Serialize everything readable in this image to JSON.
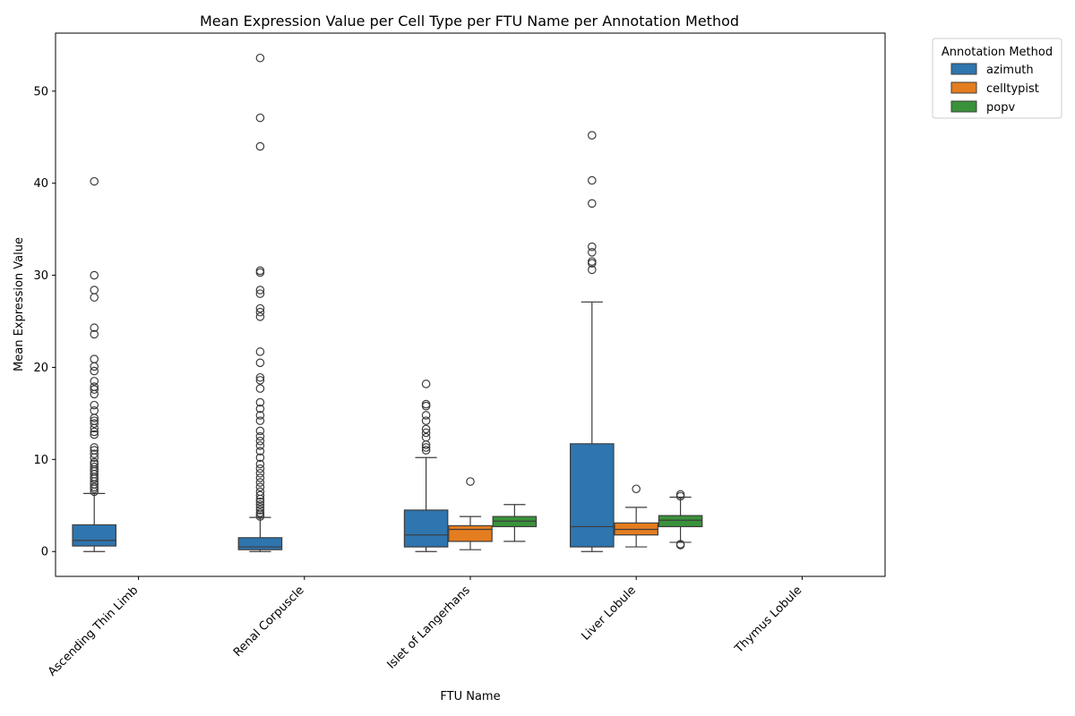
{
  "chart_data": {
    "type": "boxplot",
    "title": "Mean Expression Value per Cell Type per FTU Name per Annotation Method",
    "xlabel": "FTU Name",
    "ylabel": "Mean Expression Value",
    "ylim": [
      -2.7,
      56.3
    ],
    "yticks": [
      0,
      10,
      20,
      30,
      40,
      50
    ],
    "grid": false,
    "legend": {
      "title": "Annotation Method",
      "position": "outside-top-right"
    },
    "categories": [
      "Ascending Thin Limb",
      "Renal Corpuscle",
      "Islet of Langerhans",
      "Liver Lobule",
      "Thymus Lobule"
    ],
    "series": [
      {
        "name": "azimuth",
        "color": "#2f75ae",
        "boxes": [
          {
            "min": 0.0,
            "q1": 0.6,
            "median": 1.2,
            "q3": 2.9,
            "max": 6.3,
            "outliers": [
              6.5,
              6.8,
              7.0,
              7.3,
              7.6,
              7.9,
              8.1,
              8.4,
              8.7,
              8.9,
              9.2,
              9.5,
              9.7,
              10.2,
              10.6,
              11.0,
              11.3,
              12.7,
              13.0,
              13.4,
              13.9,
              14.2,
              14.5,
              15.3,
              15.9,
              17.1,
              17.6,
              17.9,
              18.5,
              19.6,
              20.1,
              20.9,
              23.6,
              24.3,
              27.6,
              28.4,
              30.0,
              40.2
            ]
          },
          {
            "min": 0.0,
            "q1": 0.2,
            "median": 0.5,
            "q3": 1.5,
            "max": 3.7,
            "outliers": [
              3.8,
              4.0,
              4.2,
              4.5,
              4.8,
              5.1,
              5.4,
              5.7,
              6.1,
              6.5,
              7.0,
              7.5,
              8.0,
              8.5,
              9.0,
              9.5,
              10.2,
              10.9,
              11.5,
              12.0,
              12.5,
              13.1,
              14.2,
              14.8,
              15.5,
              16.2,
              17.7,
              18.6,
              18.9,
              20.5,
              21.7,
              25.5,
              26.0,
              26.4,
              28.0,
              28.4,
              30.3,
              30.5,
              44.0,
              47.1,
              53.6
            ]
          },
          {
            "min": 0.0,
            "q1": 0.5,
            "median": 1.8,
            "q3": 4.5,
            "max": 10.2,
            "outliers": [
              11.0,
              11.3,
              11.6,
              12.4,
              12.9,
              13.3,
              14.2,
              14.8,
              15.8,
              16.0,
              18.2
            ]
          },
          {
            "min": 0.0,
            "q1": 0.5,
            "median": 2.7,
            "q3": 11.7,
            "max": 27.1,
            "outliers": [
              30.6,
              31.3,
              31.5,
              32.5,
              33.1,
              37.8,
              40.3,
              45.2
            ]
          },
          null
        ]
      },
      {
        "name": "celltypist",
        "color": "#e47d1f",
        "boxes": [
          null,
          null,
          {
            "min": 0.2,
            "q1": 1.1,
            "median": 2.4,
            "q3": 2.8,
            "max": 3.8,
            "outliers": [
              7.6
            ]
          },
          {
            "min": 0.5,
            "q1": 1.8,
            "median": 2.4,
            "q3": 3.1,
            "max": 4.8,
            "outliers": [
              6.8
            ]
          },
          null
        ]
      },
      {
        "name": "popv",
        "color": "#3a923a",
        "boxes": [
          null,
          null,
          {
            "min": 1.1,
            "q1": 2.7,
            "median": 3.3,
            "q3": 3.8,
            "max": 5.1,
            "outliers": []
          },
          {
            "min": 1.0,
            "q1": 2.7,
            "median": 3.4,
            "q3": 3.9,
            "max": 5.9,
            "outliers": [
              0.7,
              0.8,
              6.0,
              6.2
            ]
          },
          null
        ]
      }
    ]
  }
}
